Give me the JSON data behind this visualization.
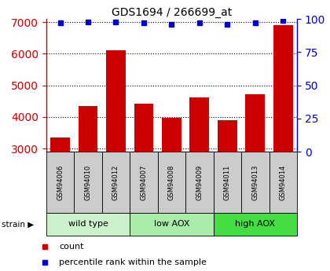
{
  "title": "GDS1694 / 266699_at",
  "samples": [
    "GSM94006",
    "GSM94010",
    "GSM94012",
    "GSM94007",
    "GSM94008",
    "GSM94009",
    "GSM94011",
    "GSM94013",
    "GSM94014"
  ],
  "counts": [
    3350,
    4350,
    6100,
    4420,
    3980,
    4620,
    3900,
    4720,
    6900
  ],
  "percentiles": [
    97,
    98,
    98,
    97,
    96,
    97,
    96,
    97,
    99
  ],
  "groups": [
    {
      "label": "wild type",
      "indices": [
        0,
        1,
        2
      ],
      "color": "#ccf0cc"
    },
    {
      "label": "low AOX",
      "indices": [
        3,
        4,
        5
      ],
      "color": "#aaeaaa"
    },
    {
      "label": "high AOX",
      "indices": [
        6,
        7,
        8
      ],
      "color": "#44dd44"
    }
  ],
  "bar_color": "#cc0000",
  "dot_color": "#0000cc",
  "ylim_left": [
    2900,
    7100
  ],
  "ylim_right": [
    0,
    100
  ],
  "yticks_left": [
    3000,
    4000,
    5000,
    6000,
    7000
  ],
  "yticks_right": [
    0,
    25,
    50,
    75,
    100
  ],
  "grid_color": "#000000",
  "tick_label_color_left": "#cc0000",
  "tick_label_color_right": "#0000cc",
  "strain_label": "strain",
  "legend_count": "count",
  "legend_pct": "percentile rank within the sample",
  "sample_box_color": "#cccccc",
  "figsize": [
    4.2,
    3.45
  ],
  "dpi": 100
}
